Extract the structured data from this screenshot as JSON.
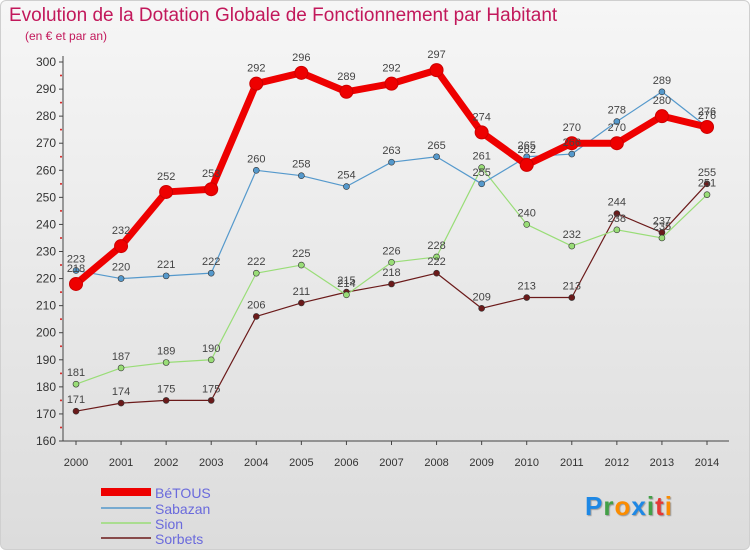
{
  "header": {
    "title": "Evolution de la Dotation Globale de Fonctionnement par Habitant",
    "subtitle": "(en € et par an)"
  },
  "brand": {
    "logo_text": "Proxiti",
    "letters": [
      {
        "char": "P",
        "color": "#1e88e5"
      },
      {
        "char": "r",
        "color": "#43a047"
      },
      {
        "char": "o",
        "color": "#fb8c00"
      },
      {
        "char": "x",
        "color": "#1e88e5"
      },
      {
        "char": "i",
        "color": "#43a047"
      },
      {
        "char": "t",
        "color": "#e53935"
      },
      {
        "char": "i",
        "color": "#fb8c00"
      }
    ]
  },
  "chart_data": {
    "type": "line",
    "title": "Evolution de la Dotation Globale de Fonctionnement par Habitant",
    "subtitle": "(en € et par an)",
    "xlabel": "",
    "ylabel": "",
    "x": [
      2000,
      2001,
      2002,
      2003,
      2004,
      2005,
      2006,
      2007,
      2008,
      2009,
      2010,
      2011,
      2012,
      2013,
      2014
    ],
    "ylim": [
      160,
      300
    ],
    "yticks": [
      160,
      170,
      180,
      190,
      200,
      210,
      220,
      230,
      240,
      250,
      260,
      270,
      280,
      290,
      300
    ],
    "grid": false,
    "legend_position": "bottom-left",
    "series": [
      {
        "name": "Sorbets",
        "color": "#6b1a1a",
        "emphasis": false,
        "values": [
          171,
          174,
          175,
          175,
          206,
          211,
          215,
          218,
          222,
          209,
          213,
          213,
          244,
          237,
          255
        ]
      },
      {
        "name": "Sion",
        "color": "#99dd77",
        "emphasis": false,
        "values": [
          181,
          187,
          189,
          190,
          222,
          225,
          214,
          226,
          228,
          261,
          240,
          232,
          238,
          235,
          251
        ]
      },
      {
        "name": "Sabazan",
        "color": "#5599cc",
        "emphasis": false,
        "values": [
          223,
          220,
          221,
          222,
          260,
          258,
          254,
          263,
          265,
          255,
          265,
          266,
          278,
          289,
          276
        ]
      },
      {
        "name": "BéTOUS",
        "color": "#ee0000",
        "emphasis": true,
        "values": [
          218,
          232,
          252,
          253,
          292,
          296,
          289,
          292,
          297,
          274,
          262,
          270,
          270,
          280,
          276
        ]
      }
    ],
    "legend": [
      "BéTOUS",
      "Sabazan",
      "Sion",
      "Sorbets"
    ]
  }
}
